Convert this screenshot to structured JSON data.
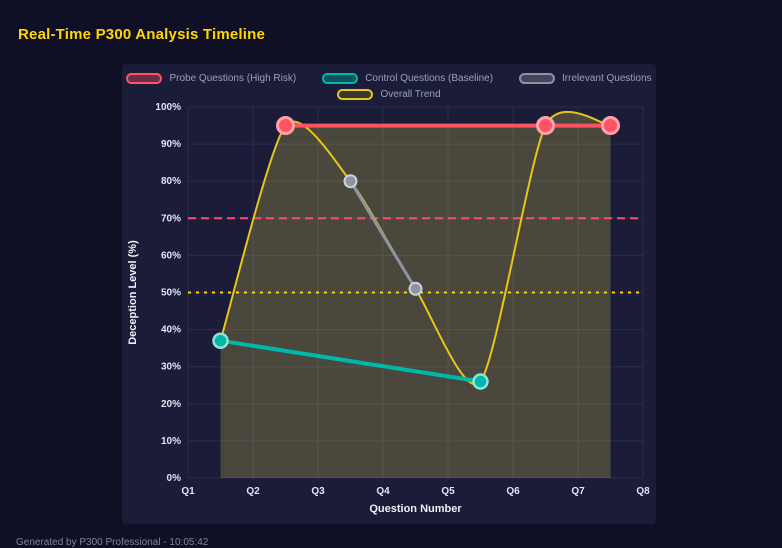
{
  "page": {
    "title": "Real-Time P300 Analysis Timeline",
    "footer": "Generated by P300 Professional - 10:05:42"
  },
  "colors": {
    "page_bg": "#0f1026",
    "card_bg": "#1a1c38",
    "title": "#ffd700",
    "grid": "#2a2d50",
    "tick_text": "#e2e5f2",
    "axis_title_text": "#eef0fa"
  },
  "chart_data": {
    "type": "line",
    "title": "Real-Time P300 Analysis Timeline",
    "xlabel": "Question Number",
    "ylabel": "Deception Level (%)",
    "x_tick_labels": [
      "Q1",
      "Q2",
      "Q3",
      "Q4",
      "Q5",
      "Q6",
      "Q7",
      "Q8"
    ],
    "x_range": [
      1,
      8
    ],
    "y_range": [
      0,
      100
    ],
    "y_tick_step": 10,
    "y_tick_suffix": "%",
    "grid": true,
    "legend_position": "top",
    "area_opacity": 0.27,
    "thresholds": [
      {
        "label": "high-risk-threshold-line",
        "value": 70,
        "color": "#ff4d6d",
        "dash": "8 5"
      },
      {
        "label": "baseline-threshold-line",
        "value": 50,
        "color": "#ffd700",
        "dash": "3 5"
      }
    ],
    "series": [
      {
        "key": "probe",
        "name": "Probe Questions (High Risk)",
        "color": "#ff5263",
        "point_border": "#ffa1ab",
        "point_border_width": 3,
        "swatch_bg": "rgba(255,82,99,0.35)",
        "line_width": 4,
        "point_radius": 8,
        "fill": "#cdbc4a",
        "points": [
          {
            "x": 2.5,
            "y": 95
          },
          {
            "x": 6.5,
            "y": 95
          },
          {
            "x": 7.5,
            "y": 95
          }
        ]
      },
      {
        "key": "control",
        "name": "Control Questions (Baseline)",
        "color": "#00b8a9",
        "point_border": "#8fe3da",
        "point_border_width": 2.5,
        "swatch_bg": "rgba(0,184,169,0.35)",
        "line_width": 4,
        "point_radius": 7,
        "points": [
          {
            "x": 1.5,
            "y": 37
          },
          {
            "x": 5.5,
            "y": 26
          }
        ]
      },
      {
        "key": "irrelevant",
        "name": "Irrelevant Questions",
        "color": "#8e93a0",
        "point_border": "#cfd2da",
        "point_border_width": 2,
        "swatch_bg": "rgba(142,147,160,0.35)",
        "line_width": 3,
        "point_radius": 6,
        "points": [
          {
            "x": 3.5,
            "y": 80
          },
          {
            "x": 4.5,
            "y": 51
          }
        ]
      },
      {
        "key": "trend",
        "name": "Overall Trend",
        "color": "#e6c619",
        "point_border": "#e6c619",
        "point_border_width": 0,
        "swatch_bg": "rgba(230,198,25,0.15)",
        "line_width": 2,
        "point_radius": 0,
        "smooth": true,
        "fill": "#cdbc4a",
        "points": [
          {
            "x": 1.5,
            "y": 37
          },
          {
            "x": 2.5,
            "y": 95
          },
          {
            "x": 3.5,
            "y": 80
          },
          {
            "x": 4.5,
            "y": 51
          },
          {
            "x": 5.5,
            "y": 26
          },
          {
            "x": 6.5,
            "y": 95
          },
          {
            "x": 7.5,
            "y": 95
          }
        ]
      }
    ]
  }
}
